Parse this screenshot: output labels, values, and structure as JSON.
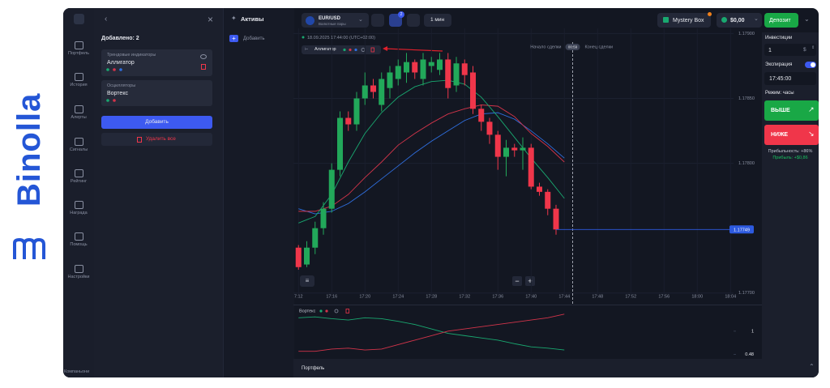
{
  "brand": "Binolla",
  "sidebar": {
    "items": [
      "Портфель",
      "История",
      "Алерты",
      "Сигналы",
      "Рейтинг",
      "Награда",
      "Помощь",
      "Настройки"
    ],
    "footer": "Компаньони"
  },
  "indicators_panel": {
    "title": "Добавлено: 2",
    "groups": [
      {
        "category": "Трендовые индикаторы",
        "name": "Аллигатор"
      },
      {
        "category": "Осцилляторы",
        "name": "Вортекс"
      }
    ],
    "add": "Добавить",
    "remove_all": "Удалить все"
  },
  "assets_panel": {
    "title": "Активы",
    "add": "Добавить"
  },
  "topbar": {
    "asset": "EUR/USD",
    "asset_type": "Валютные пары",
    "timeframe": "1 мин",
    "badge": "2",
    "mystery_box": "Mystery Box",
    "balance": "$0,00",
    "deposit": "Депозит"
  },
  "trade": {
    "investment_label": "Инвестиции",
    "investment": "1",
    "currency": "$",
    "expiration_label": "Экспирация",
    "expiration": "17:45:00",
    "mode": "Режим: часы",
    "up": "ВЫШЕ",
    "down": "НИЖЕ",
    "payout": "Прибыльность: +86%",
    "profit": "Прибыль: +$0,86"
  },
  "bottom_bar": "Портфель",
  "chart_data": [
    {
      "type": "candlestick",
      "header": "18.09.2025  17:44:00 (UTC+02:00)",
      "deal_start_label": "Начало сделки",
      "deal_end_label": "Конец сделки",
      "timer": "00:59",
      "x": [
        "17:12",
        "17:13",
        "17:14",
        "17:15",
        "17:16",
        "17:17",
        "17:18",
        "17:19",
        "17:20",
        "17:21",
        "17:22",
        "17:23",
        "17:24",
        "17:25",
        "17:26",
        "17:27",
        "17:28",
        "17:29",
        "17:30",
        "17:31",
        "17:32",
        "17:33",
        "17:34",
        "17:35",
        "17:36",
        "17:37",
        "17:38",
        "17:39",
        "17:40",
        "17:41",
        "17:42",
        "17:43"
      ],
      "open": [
        1.17735,
        1.17722,
        1.17735,
        1.1775,
        1.17765,
        1.17795,
        1.17835,
        1.1783,
        1.1785,
        1.1786,
        1.17845,
        1.17858,
        1.17865,
        1.1787,
        1.17878,
        1.17865,
        1.17875,
        1.17872,
        1.1788,
        1.1786,
        1.17877,
        1.1787,
        1.17842,
        1.17832,
        1.17822,
        1.17805,
        1.17812,
        1.1781,
        1.17812,
        1.17782,
        1.17778,
        1.17765
      ],
      "high": [
        1.17737,
        1.1774,
        1.17755,
        1.1777,
        1.178,
        1.1784,
        1.1784,
        1.17855,
        1.1787,
        1.17865,
        1.1787,
        1.17875,
        1.1788,
        1.17885,
        1.1788,
        1.17885,
        1.17882,
        1.17885,
        1.17885,
        1.17882,
        1.1788,
        1.17875,
        1.17845,
        1.17835,
        1.17825,
        1.17818,
        1.17815,
        1.1782,
        1.17815,
        1.17785,
        1.1778,
        1.17768
      ],
      "low": [
        1.17718,
        1.1772,
        1.1773,
        1.17745,
        1.17762,
        1.1779,
        1.17825,
        1.17825,
        1.17845,
        1.1785,
        1.1784,
        1.1785,
        1.1786,
        1.17862,
        1.17865,
        1.1786,
        1.1787,
        1.17868,
        1.1785,
        1.17855,
        1.1786,
        1.17838,
        1.17825,
        1.17815,
        1.17795,
        1.1779,
        1.17805,
        1.17795,
        1.1778,
        1.17775,
        1.1776,
        1.17745
      ],
      "close": [
        1.1772,
        1.17735,
        1.1775,
        1.17765,
        1.17795,
        1.17835,
        1.1783,
        1.1785,
        1.1786,
        1.17855,
        1.17865,
        1.1787,
        1.17875,
        1.17878,
        1.1787,
        1.1788,
        1.17878,
        1.1788,
        1.17858,
        1.17877,
        1.17868,
        1.17842,
        1.17832,
        1.17822,
        1.17805,
        1.17812,
        1.1781,
        1.17812,
        1.17782,
        1.17778,
        1.17765,
        1.17749
      ],
      "up_color": "#22a85a",
      "down_color": "#f0364a",
      "indicator": {
        "title": "Аллигатор",
        "x": [
          "17:12",
          "17:14",
          "17:16",
          "17:18",
          "17:20",
          "17:22",
          "17:24",
          "17:26",
          "17:28",
          "17:30",
          "17:32",
          "17:34",
          "17:36",
          "17:38",
          "17:40",
          "17:42",
          "17:44"
        ],
        "series": [
          {
            "color": "#2f6fe0",
            "values": [
              1.17765,
              1.17761,
              1.17763,
              1.17769,
              1.17778,
              1.17788,
              1.17798,
              1.17808,
              1.17817,
              1.17825,
              1.17833,
              1.17838,
              1.17839,
              1.17834,
              1.17825,
              1.17815,
              1.17804
            ]
          },
          {
            "color": "#d2344a",
            "values": [
              1.17763,
              1.17763,
              1.17767,
              1.17776,
              1.17789,
              1.17801,
              1.17814,
              1.17823,
              1.17831,
              1.17838,
              1.17842,
              1.17845,
              1.17844,
              1.17836,
              1.17823,
              1.17813,
              1.17801
            ]
          },
          {
            "color": "#19a870",
            "values": [
              1.17754,
              1.17759,
              1.17776,
              1.17801,
              1.17823,
              1.17839,
              1.17851,
              1.17859,
              1.17863,
              1.17864,
              1.17861,
              1.17851,
              1.17836,
              1.1782,
              1.17804,
              1.17789,
              1.17773
            ]
          }
        ]
      },
      "current_price": 1.17749,
      "xlim": [
        "17:11",
        "18:05"
      ],
      "ylim": [
        1.17698,
        1.17904
      ],
      "xticks": [
        {
          "value": "17:12",
          "label": "7:12"
        },
        "17:16",
        "17:20",
        "17:24",
        "17:28",
        "17:32",
        "17:36",
        "17:40",
        "17:44",
        "17:48",
        "17:52",
        "17:56",
        "18:00",
        "18:04"
      ],
      "yticks": [
        {
          "value": 1.179,
          "label": "1.17900"
        },
        {
          "value": 1.1785,
          "label": "1.17850"
        },
        {
          "value": 1.178,
          "label": "1.17800"
        },
        {
          "value": 1.177,
          "label": "1.17700"
        }
      ],
      "grid": true
    },
    {
      "type": "line",
      "title": "Вортекс",
      "x": [
        "17:12",
        "17:14",
        "17:16",
        "17:18",
        "17:20",
        "17:22",
        "17:24",
        "17:26",
        "17:28",
        "17:30",
        "17:32",
        "17:34",
        "17:36",
        "17:38",
        "17:40",
        "17:42",
        "17:44"
      ],
      "series": [
        {
          "color": "#19a870",
          "values": [
            1.3,
            1.32,
            1.28,
            1.25,
            1.3,
            1.28,
            1.22,
            1.15,
            1.05,
            0.95,
            0.9,
            0.85,
            0.8,
            0.72,
            0.65,
            0.62,
            0.58
          ]
        },
        {
          "color": "#d2344a",
          "values": [
            0.55,
            0.55,
            0.6,
            0.62,
            0.58,
            0.6,
            0.7,
            0.8,
            0.9,
            1.0,
            1.05,
            1.1,
            1.15,
            1.2,
            1.25,
            1.3,
            1.38
          ]
        }
      ],
      "xlim": [
        "17:11",
        "18:05"
      ],
      "ylim": [
        0.4,
        1.45
      ],
      "yticks": [
        1,
        0.48
      ]
    }
  ]
}
